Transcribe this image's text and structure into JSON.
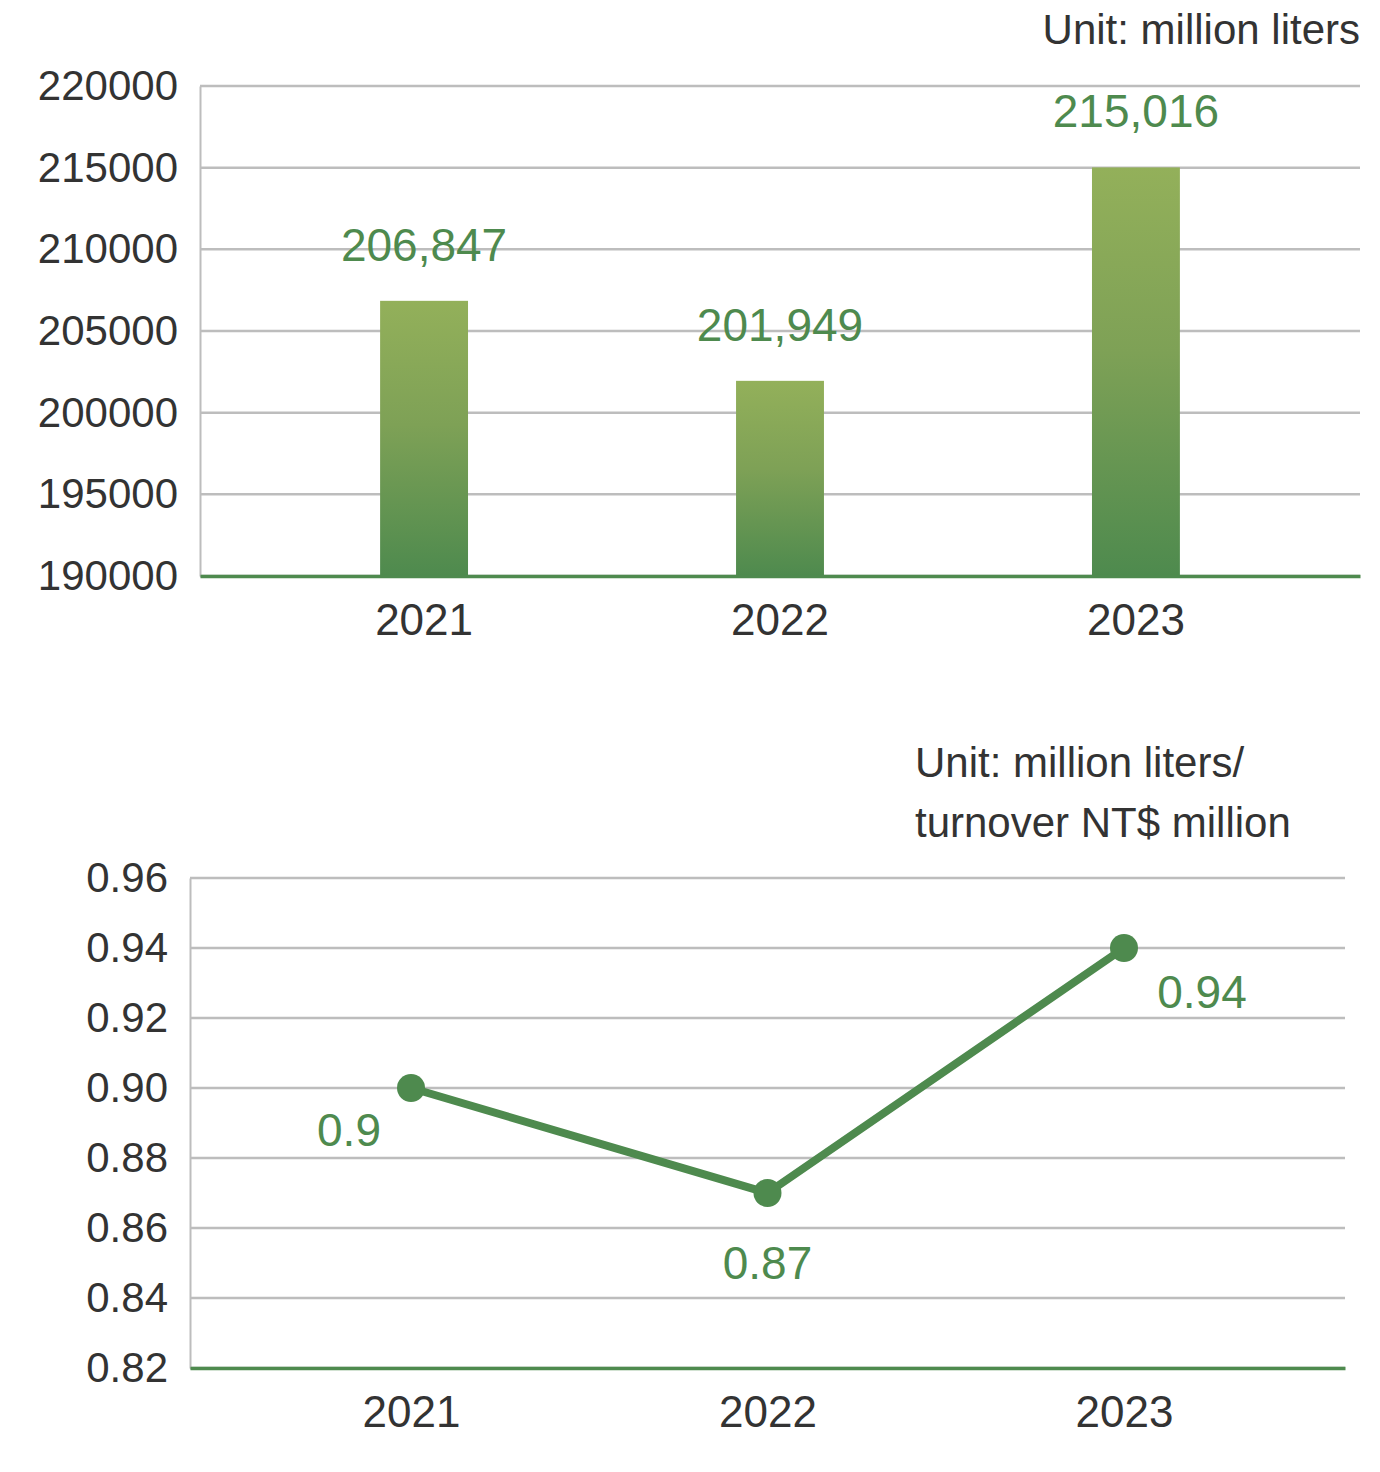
{
  "chart_data": [
    {
      "type": "bar",
      "annotations": [
        "Unit: million liters"
      ],
      "categories": [
        "2021",
        "2022",
        "2023"
      ],
      "values": [
        206847,
        201949,
        215016
      ],
      "value_labels": [
        "206,847",
        "201,949",
        "215,016"
      ],
      "data_labels": true,
      "color": "#4e8a4e",
      "ylim": [
        190000,
        220000
      ],
      "yticks": [
        190000,
        195000,
        200000,
        205000,
        210000,
        215000,
        220000
      ],
      "grid": true
    },
    {
      "type": "line",
      "annotations": [
        "Unit: million liters/",
        "turnover NT$ million"
      ],
      "categories": [
        "2021",
        "2022",
        "2023"
      ],
      "values": [
        0.9,
        0.87,
        0.94
      ],
      "data_labels": true,
      "color": "#4e8a4e",
      "marker": "circle",
      "ylim": [
        0.82,
        0.96
      ],
      "yticks": [
        0.82,
        0.84,
        0.86,
        0.88,
        {
          "value": 0.9,
          "label": "0.90"
        },
        0.92,
        0.94,
        0.96
      ],
      "grid": true
    }
  ]
}
